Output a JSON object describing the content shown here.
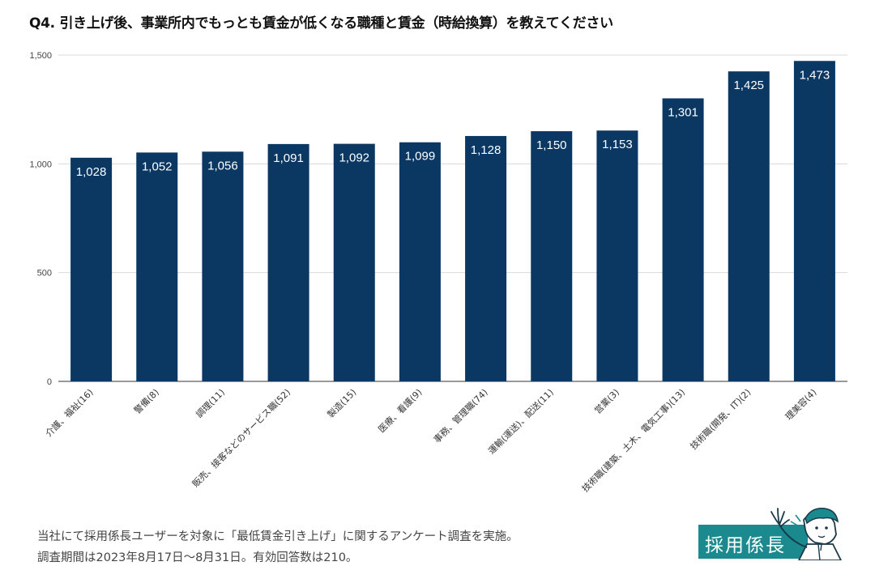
{
  "title": "Q4. 引き上げ後、事業所内でもっとも賃金が低くなる職種と賃金（時給換算）を教えてください",
  "chart_data": {
    "type": "bar",
    "title": "Q4. 引き上げ後、事業所内でもっとも賃金が低くなる職種と賃金（時給換算）を教えてください",
    "categories": [
      "介護、福祉(16)",
      "警備(8)",
      "調理(11)",
      "販売、接客などのサービス職(52)",
      "製造(15)",
      "医療、看護(9)",
      "事務、管理職(74)",
      "運輸(運送)、配送(11)",
      "営業(3)",
      "技術職(建築、土木、電気工事)(13)",
      "技術職(開発、IT)(2)",
      "理美容(4)"
    ],
    "values": [
      1028,
      1052,
      1056,
      1091,
      1092,
      1099,
      1128,
      1150,
      1153,
      1301,
      1425,
      1473
    ],
    "value_labels": [
      "1,028",
      "1,052",
      "1,056",
      "1,091",
      "1,092",
      "1,099",
      "1,128",
      "1,150",
      "1,153",
      "1,301",
      "1,425",
      "1,473"
    ],
    "yticks": [
      0,
      500,
      1000,
      1500
    ],
    "ytick_labels": [
      "0",
      "500",
      "1,000",
      "1,500"
    ],
    "ylim": [
      0,
      1500
    ],
    "xlabel": "",
    "ylabel": "",
    "grid": true,
    "legend": "none",
    "bar_color": "#0b3863"
  },
  "notes": {
    "line1": "当社にて採用係長ユーザーを対象に「最低賃金引き上げ」に関するアンケート調査を実施。",
    "line2": "調査期間は2023年8月17日〜8月31日。有効回答数は210。"
  },
  "logo": {
    "text": "採用係長",
    "color": "#1a8a8e"
  }
}
